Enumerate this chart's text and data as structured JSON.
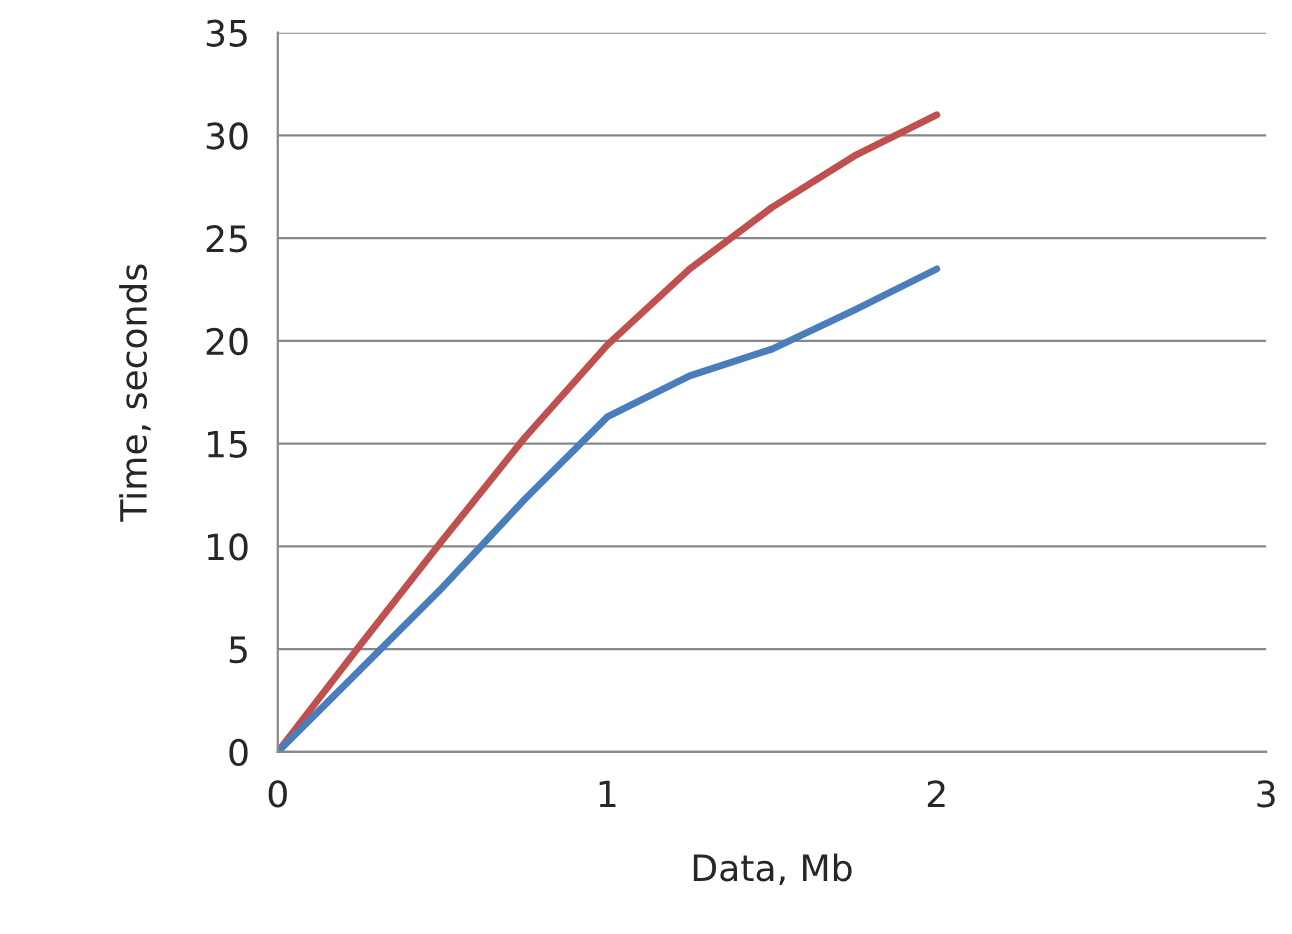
{
  "chart_data": {
    "type": "line",
    "xlabel": "Data, Mb",
    "ylabel": "Time, seconds",
    "series": [
      {
        "color": "#c0504d",
        "x": [
          0,
          0.25,
          0.5,
          0.75,
          1,
          1.25,
          1.5,
          1.75,
          2
        ],
        "values": [
          0,
          5.2,
          10.3,
          15.3,
          19.8,
          23.5,
          26.5,
          29,
          31
        ]
      },
      {
        "color": "#4a7ebb",
        "x": [
          0,
          0.25,
          0.5,
          0.75,
          1,
          1.25,
          1.5,
          1.75,
          2
        ],
        "values": [
          0,
          4,
          8,
          12.3,
          16.3,
          18.3,
          19.6,
          21.5,
          23.5
        ]
      }
    ],
    "xlim": [
      0,
      3
    ],
    "xticks": [
      0,
      1,
      2,
      3
    ],
    "ylim": [
      0,
      35
    ],
    "yticks": [
      0,
      5,
      10,
      15,
      20,
      25,
      30,
      35
    ],
    "grid": "y",
    "marker": "none",
    "line_style": "solid"
  }
}
